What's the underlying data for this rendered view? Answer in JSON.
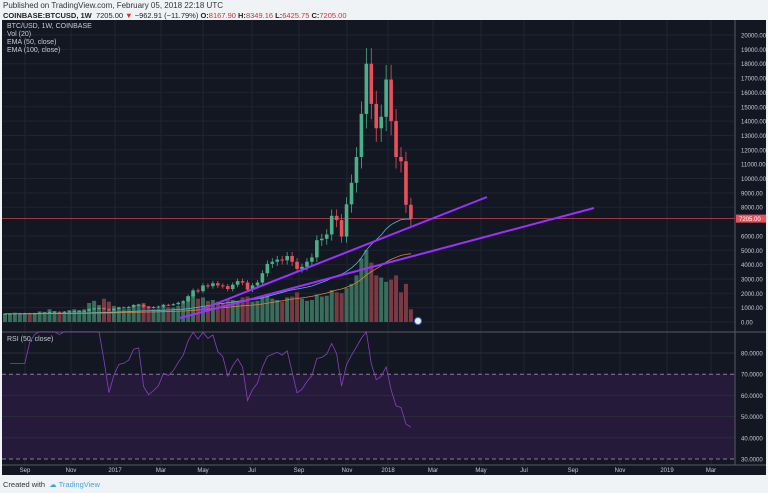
{
  "header": {
    "published": "Published on TradingView.com, February 05, 2018 22:18 UTC",
    "symbol": "COINBASE:BTCUSD, 1W",
    "last": "7205.00",
    "change": "−962.91 (−11.79%)",
    "o_label": "O:",
    "o": "8167.90",
    "h_label": "H:",
    "h": "8349.16",
    "l_label": "L:",
    "l": "6425.75",
    "c_label": "C:",
    "c": "7205.00"
  },
  "legend": [
    "BTC/USD, 1W, COINBASE",
    "Vol (20)",
    "EMA (50, close)",
    "EMA (100, close)"
  ],
  "rsi_legend": "RSI (50, close)",
  "footer": {
    "created": "Created with",
    "brand": "TradingView"
  },
  "colors": {
    "up": "#4caf8a",
    "down": "#e8505b",
    "ema50": "#5ab4d6",
    "ema100": "#d8863a",
    "rsi": "#8b3fbf",
    "trend": "#9b30ff"
  },
  "chart_data": {
    "type": "candlestick",
    "title": "BTC/USD, 1W, COINBASE",
    "price_ticks": [
      "20000.00",
      "19000.00",
      "18000.00",
      "17000.00",
      "16000.00",
      "15000.00",
      "14000.00",
      "13000.00",
      "12000.00",
      "11000.00",
      "10000.00",
      "9000.00",
      "8000.00",
      "6000.00",
      "5000.00",
      "4000.00",
      "3000.00",
      "2000.00",
      "1000.00",
      "0.00"
    ],
    "price_values": [
      20000,
      19000,
      18000,
      17000,
      16000,
      15000,
      14000,
      13000,
      12000,
      11000,
      10000,
      9000,
      8000,
      6000,
      5000,
      4000,
      3000,
      2000,
      1000,
      0
    ],
    "last_price_label": "7205.00",
    "last_price": 7205,
    "rsi_ticks": [
      "80.0000",
      "70.0000",
      "60.0000",
      "50.0000",
      "40.0000",
      "30.0000"
    ],
    "rsi_values": [
      80,
      70,
      60,
      50,
      40,
      30
    ],
    "x_ticks": [
      "Sep",
      "Nov",
      "2017",
      "Mar",
      "May",
      "Jul",
      "Sep",
      "Nov",
      "2018",
      "Mar",
      "May",
      "Jul",
      "Sep",
      "Nov",
      "2019",
      "Mar"
    ],
    "closes": [
      575,
      580,
      600,
      605,
      610,
      605,
      615,
      640,
      650,
      700,
      710,
      700,
      720,
      740,
      760,
      770,
      780,
      900,
      950,
      975,
      900,
      820,
      920,
      1010,
      1020,
      1050,
      1180,
      1200,
      1050,
      1010,
      1040,
      1080,
      1200,
      1190,
      1240,
      1340,
      1450,
      1800,
      2200,
      2150,
      2550,
      2500,
      2700,
      2550,
      2500,
      2300,
      2600,
      2850,
      2750,
      2250,
      2550,
      2750,
      3400,
      4050,
      4200,
      4350,
      4300,
      4600,
      4200,
      3700,
      3850,
      4200,
      4500,
      5700,
      5800,
      6100,
      7400,
      7100,
      5950,
      8200,
      9700,
      11500,
      14500,
      18000,
      15200,
      13500,
      14300,
      16900,
      14000,
      11500,
      11200,
      8168,
      7205
    ],
    "volumes": [
      20,
      18,
      22,
      20,
      19,
      18,
      21,
      25,
      24,
      30,
      26,
      22,
      24,
      28,
      30,
      28,
      30,
      45,
      50,
      40,
      55,
      48,
      38,
      35,
      30,
      32,
      40,
      42,
      45,
      38,
      30,
      32,
      38,
      35,
      34,
      38,
      45,
      60,
      65,
      55,
      58,
      50,
      52,
      48,
      45,
      55,
      52,
      50,
      58,
      60,
      48,
      50,
      62,
      65,
      55,
      52,
      48,
      58,
      60,
      70,
      55,
      50,
      52,
      65,
      60,
      62,
      75,
      70,
      68,
      80,
      90,
      110,
      150,
      170,
      140,
      110,
      105,
      95,
      100,
      110,
      70,
      90,
      30
    ],
    "trend_lines": 2
  }
}
